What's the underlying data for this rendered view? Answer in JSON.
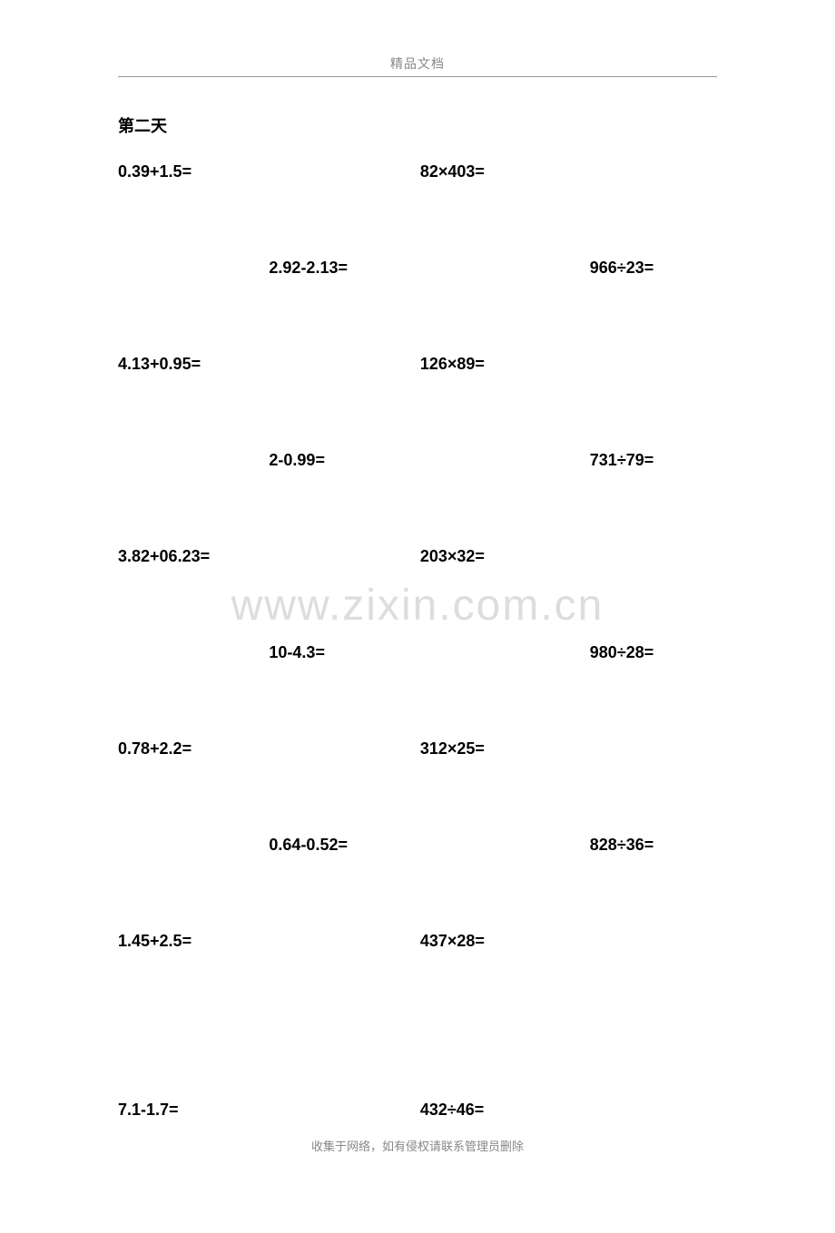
{
  "header": {
    "title": "精品文档"
  },
  "day_title": "第二天",
  "problems": {
    "rows": [
      {
        "c1": "0.39+1.5=",
        "c2": "",
        "c3": "82×403=",
        "c4": ""
      },
      {
        "c1": "",
        "c2": "2.92-2.13=",
        "c3": "",
        "c4": "966÷23="
      },
      {
        "c1": "4.13+0.95=",
        "c2": "",
        "c3": "126×89=",
        "c4": ""
      },
      {
        "c1": "",
        "c2": "2-0.99=",
        "c3": "",
        "c4": "731÷79="
      },
      {
        "c1": "3.82+06.23=",
        "c2": "",
        "c3": "203×32=",
        "c4": ""
      },
      {
        "c1": "",
        "c2": "10-4.3=",
        "c3": "",
        "c4": "980÷28="
      },
      {
        "c1": "0.78+2.2=",
        "c2": "",
        "c3": "312×25=",
        "c4": ""
      },
      {
        "c1": "",
        "c2": "0.64-0.52=",
        "c3": "",
        "c4": "828÷36="
      },
      {
        "c1": "1.45+2.5=",
        "c2": "",
        "c3": "437×28=",
        "c4": ""
      }
    ],
    "last_row": {
      "c1": "7.1-1.7=",
      "c2": "",
      "c3": "432÷46=",
      "c4": ""
    }
  },
  "watermark": "www.zixin.com.cn",
  "footer": "收集于网络，如有侵权请联系管理员删除",
  "styles": {
    "page_bg": "#ffffff",
    "text_color": "#000000",
    "header_color": "#888888",
    "watermark_color": "#dddddd",
    "line_color": "#999999",
    "title_fontsize": 18,
    "problem_fontsize": 18,
    "header_fontsize": 14,
    "footer_fontsize": 13,
    "watermark_fontsize": 48
  }
}
